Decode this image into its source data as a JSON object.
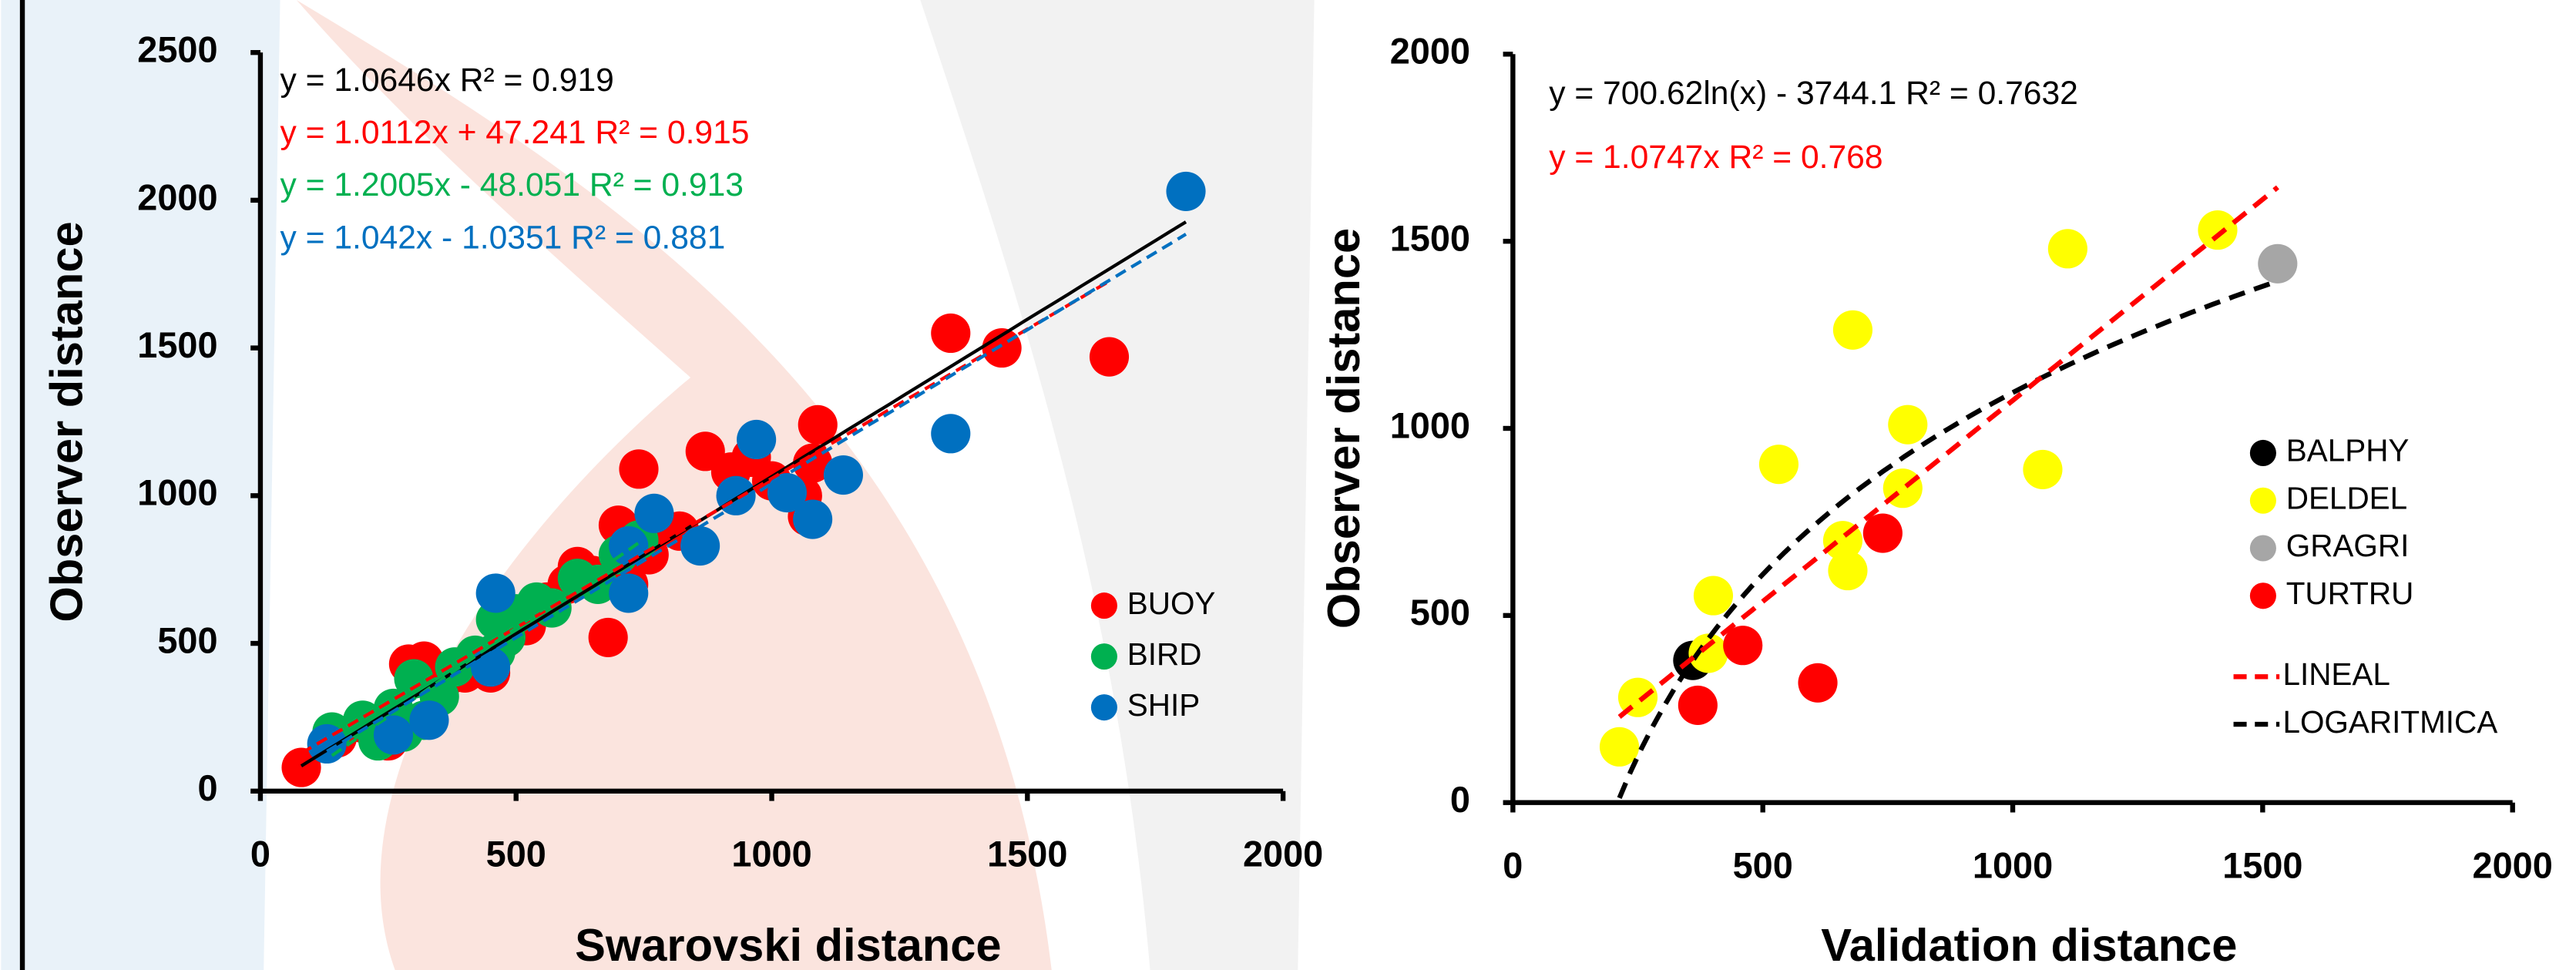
{
  "chart_data": [
    {
      "type": "scatter",
      "x_label": "Swarovski distance",
      "y_label": "Observer distance",
      "xlim": [
        0,
        2000
      ],
      "ylim": [
        0,
        2500
      ],
      "xticks": [
        0,
        500,
        1000,
        1500,
        2000
      ],
      "yticks": [
        0,
        500,
        1000,
        1500,
        2000,
        2500
      ],
      "series": [
        {
          "name": "BUOY",
          "color": "#ff0000",
          "x": [
            80,
            150,
            200,
            250,
            290,
            320,
            360,
            400,
            450,
            480,
            520,
            560,
            600,
            620,
            650,
            680,
            700,
            720,
            740,
            760,
            720,
            780,
            820,
            870,
            920,
            960,
            1000,
            1060,
            1080,
            1090,
            1070,
            1350,
            1450,
            1660
          ],
          "y": [
            80,
            180,
            230,
            170,
            430,
            440,
            380,
            400,
            400,
            520,
            560,
            640,
            700,
            760,
            730,
            520,
            900,
            860,
            1090,
            800,
            700,
            900,
            880,
            1150,
            1080,
            1130,
            1050,
            1000,
            1110,
            1240,
            930,
            1550,
            1500,
            1470
          ]
        },
        {
          "name": "BIRD",
          "color": "#00b050",
          "x": [
            140,
            200,
            230,
            260,
            300,
            320,
            350,
            380,
            420,
            460,
            480,
            500,
            540,
            570,
            620,
            660,
            700,
            740,
            460,
            280
          ],
          "y": [
            200,
            240,
            170,
            280,
            380,
            240,
            320,
            420,
            460,
            580,
            520,
            600,
            640,
            620,
            720,
            700,
            800,
            850,
            470,
            200
          ]
        },
        {
          "name": "SHIP",
          "color": "#0070c0",
          "x": [
            130,
            260,
            330,
            450,
            460,
            720,
            720,
            770,
            860,
            930,
            970,
            1030,
            1080,
            1140,
            1350,
            1810
          ],
          "y": [
            160,
            190,
            240,
            420,
            670,
            830,
            670,
            940,
            830,
            1000,
            1190,
            1010,
            920,
            1070,
            1210,
            2030
          ]
        }
      ],
      "annotations": [
        {
          "text": "y = 1.0646x R² = 0.919",
          "color": "#000000"
        },
        {
          "text": "y = 1.0112x + 47.241 R² = 0.915",
          "color": "#ff0000"
        },
        {
          "text": "y = 1.2005x - 48.051 R² = 0.913",
          "color": "#00b050"
        },
        {
          "text": "y = 1.042x - 1.0351 R² = 0.881",
          "color": "#0070c0"
        }
      ]
    },
    {
      "type": "scatter",
      "x_label": "Validation distance",
      "y_label": "Observer distance",
      "xlim": [
        0,
        2000
      ],
      "ylim": [
        0,
        2000
      ],
      "xticks": [
        0,
        500,
        1000,
        1500,
        2000
      ],
      "yticks": [
        0,
        500,
        1000,
        1500,
        2000
      ],
      "series": [
        {
          "name": "BALPHY",
          "color": "#000000",
          "x": [
            360
          ],
          "y": [
            380
          ]
        },
        {
          "name": "DELDEL",
          "color": "#ffff00",
          "x": [
            213,
            250,
            401,
            391,
            532,
            680,
            660,
            670,
            790,
            780,
            1060,
            1110,
            1410
          ],
          "y": [
            149,
            281,
            553,
            399,
            904,
            1263,
            700,
            620,
            1010,
            840,
            890,
            1480,
            1530
          ]
        },
        {
          "name": "GRAGRI",
          "color": "#a6a6a6",
          "x": [
            1530
          ],
          "y": [
            1440
          ]
        },
        {
          "name": "TURTRU",
          "color": "#ff0000",
          "x": [
            370,
            460,
            610,
            740
          ],
          "y": [
            260,
            420,
            320,
            720
          ]
        }
      ],
      "annotations": [
        {
          "text": "y = 700.62ln(x) - 3744.1 R² = 0.7632",
          "color": "#000000"
        },
        {
          "text": "y = 1.0747x R² = 0.768",
          "color": "#ff0000"
        }
      ],
      "trendlines": [
        {
          "name": "LINEAL",
          "color": "#ff0000"
        },
        {
          "name": "LOGARITMICA",
          "color": "#000000"
        }
      ]
    }
  ]
}
